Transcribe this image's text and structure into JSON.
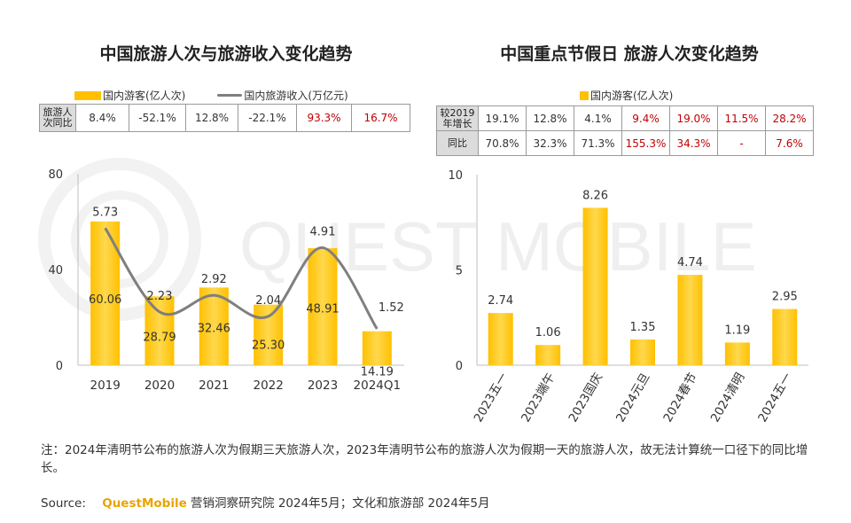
{
  "left": {
    "title": "中国旅游人次与旅游收入变化趋势",
    "legend": {
      "bar": "国内游客(亿人次)",
      "line": "国内旅游收入(万亿元)"
    },
    "table": {
      "row_label": "旅游人次同比",
      "values": [
        "8.4%",
        "-52.1%",
        "12.8%",
        "-22.1%",
        "93.3%",
        "16.7%"
      ],
      "highlight": [
        false,
        false,
        false,
        false,
        true,
        true
      ]
    }
  },
  "right": {
    "title": "中国重点节假日 旅游人次变化趋势",
    "legend": {
      "bar": "国内游客(亿人次)"
    },
    "table": {
      "rows": [
        {
          "label": "较2019年增长",
          "values": [
            "19.1%",
            "12.8%",
            "4.1%",
            "9.4%",
            "19.0%",
            "11.5%",
            "28.2%"
          ],
          "highlight": [
            false,
            false,
            false,
            true,
            true,
            true,
            true
          ]
        },
        {
          "label": "同比",
          "values": [
            "70.8%",
            "32.3%",
            "71.3%",
            "155.3%",
            "34.3%",
            "-",
            "7.6%"
          ],
          "highlight": [
            false,
            false,
            false,
            true,
            true,
            true,
            true
          ]
        }
      ]
    }
  },
  "chart_data": [
    {
      "type": "bar",
      "title": "中国旅游人次与旅游收入变化趋势",
      "categories": [
        "2019",
        "2020",
        "2021",
        "2022",
        "2023",
        "2024Q1"
      ],
      "series": [
        {
          "name": "国内游客(亿人次)",
          "type": "bar",
          "axis": "left",
          "values": [
            60.06,
            28.79,
            32.46,
            25.3,
            48.91,
            14.19
          ],
          "labels": [
            "60.06",
            "28.79",
            "32.46",
            "25.30",
            "48.91",
            "14.19"
          ]
        },
        {
          "name": "国内旅游收入(万亿元)",
          "type": "line",
          "axis": "right",
          "values": [
            5.73,
            2.23,
            2.92,
            2.04,
            4.91,
            1.52
          ],
          "labels": [
            "5.73",
            "2.23",
            "2.92",
            "2.04",
            "4.91",
            "1.52"
          ]
        }
      ],
      "ylim": [
        0,
        80
      ],
      "yticks": [
        "0",
        "40",
        "80"
      ],
      "y2lim": [
        0,
        8
      ]
    },
    {
      "type": "bar",
      "title": "中国重点节假日 旅游人次变化趋势",
      "categories": [
        "2023五一",
        "2023端午",
        "2023国庆",
        "2024元旦",
        "2024春节",
        "2024清明",
        "2024五一"
      ],
      "series": [
        {
          "name": "国内游客(亿人次)",
          "values": [
            2.74,
            1.06,
            8.26,
            1.35,
            4.74,
            1.19,
            2.95
          ],
          "labels": [
            "2.74",
            "1.06",
            "8.26",
            "1.35",
            "4.74",
            "1.19",
            "2.95"
          ]
        }
      ],
      "ylim": [
        0,
        10
      ],
      "yticks": [
        "0",
        "5",
        "10"
      ]
    }
  ],
  "watermark": "QUEST MOBILE",
  "note": "注：2024年清明节公布的旅游人次为假期三天旅游人次，2023年清明节公布的旅游人次为假期一天的旅游人次，故无法计算统一口径下的同比增长。",
  "source": {
    "label": "Source:",
    "brand": "QuestMobile",
    "text": "营销洞察研究院 2024年5月；文化和旅游部 2024年5月"
  },
  "colors": {
    "bar": "#FFC000",
    "bar_light": "#FFD84D",
    "line": "#7F7F7F",
    "highlight": "#C00000"
  }
}
